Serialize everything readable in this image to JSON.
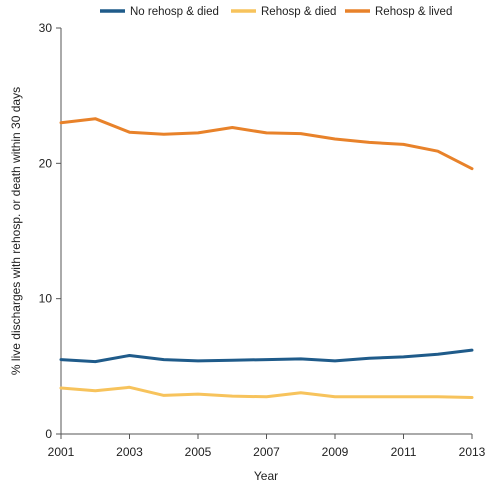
{
  "chart_data": {
    "type": "line",
    "xlabel": "Year",
    "ylabel": "% live discharges with rehosp. or death within 30 days",
    "x": [
      2001,
      2002,
      2003,
      2004,
      2005,
      2006,
      2007,
      2008,
      2009,
      2010,
      2011,
      2012,
      2013
    ],
    "xticks": [
      "2001",
      "2003",
      "2005",
      "2007",
      "2009",
      "2011",
      "2013"
    ],
    "yticks": [
      "0",
      "10",
      "20",
      "30"
    ],
    "ylim": [
      0,
      30
    ],
    "xlim": [
      2001,
      2013
    ],
    "grid": false,
    "legend_position": "top",
    "series": [
      {
        "name": "No rehosp & died",
        "color": "#1f5b8a",
        "values": [
          5.5,
          5.35,
          5.8,
          5.5,
          5.4,
          5.45,
          5.5,
          5.55,
          5.4,
          5.6,
          5.7,
          5.9,
          6.2
        ]
      },
      {
        "name": "Rehosp & died",
        "color": "#f7c35c",
        "values": [
          3.4,
          3.2,
          3.45,
          2.85,
          2.95,
          2.8,
          2.75,
          3.05,
          2.75,
          2.75,
          2.75,
          2.75,
          2.7
        ]
      },
      {
        "name": "Rehosp & lived",
        "color": "#e8822a",
        "values": [
          23.0,
          23.3,
          22.3,
          22.15,
          22.25,
          22.65,
          22.25,
          22.2,
          21.8,
          21.55,
          21.4,
          20.9,
          19.6
        ]
      }
    ]
  }
}
